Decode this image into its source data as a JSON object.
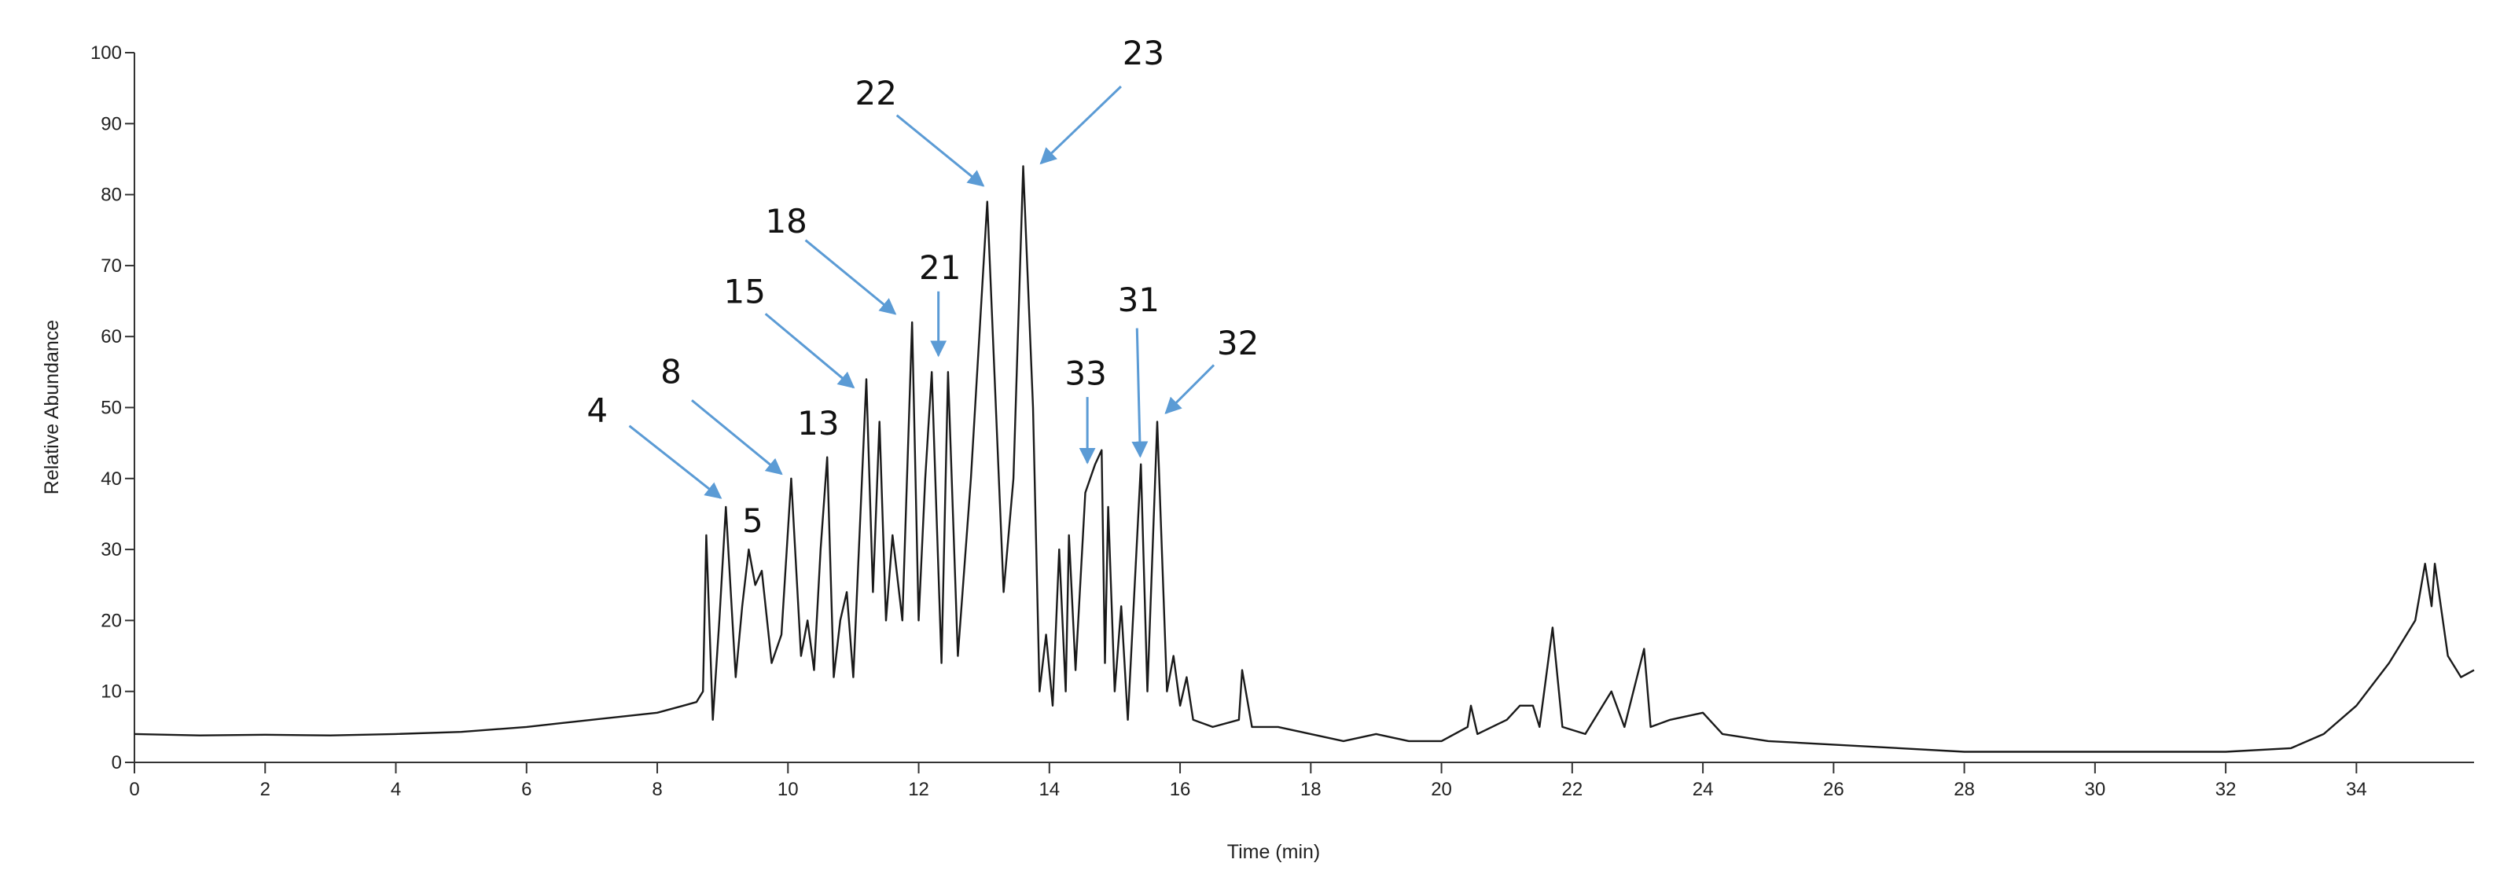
{
  "chart_data": {
    "type": "line",
    "xlabel": "Time  (min)",
    "ylabel": "Relative  Abundance",
    "xlim": [
      0,
      35.8
    ],
    "ylim": [
      0,
      100
    ],
    "xticks": [
      0,
      2,
      4,
      6,
      8,
      10,
      12,
      14,
      16,
      18,
      20,
      22,
      24,
      26,
      28,
      30,
      32,
      34
    ],
    "yticks": [
      0,
      10,
      20,
      30,
      40,
      50,
      60,
      70,
      80,
      90,
      100
    ],
    "color": "#1a1a1a",
    "annotation_color": "#5b9bd5",
    "annotations": [
      "4",
      "8",
      "5",
      "13",
      "15",
      "18",
      "21",
      "22",
      "23",
      "33",
      "31",
      "32"
    ],
    "x": [
      0,
      1,
      2,
      3,
      4,
      5,
      6,
      6.5,
      7,
      7.5,
      8,
      8.4,
      8.6,
      8.7,
      8.75,
      8.85,
      8.95,
      9.05,
      9.2,
      9.3,
      9.4,
      9.5,
      9.6,
      9.75,
      9.9,
      10.05,
      10.2,
      10.3,
      10.4,
      10.5,
      10.6,
      10.7,
      10.8,
      10.9,
      11.0,
      11.2,
      11.3,
      11.4,
      11.5,
      11.6,
      11.75,
      11.9,
      12.0,
      12.1,
      12.2,
      12.35,
      12.45,
      12.6,
      12.8,
      13.05,
      13.3,
      13.45,
      13.6,
      13.75,
      13.85,
      13.95,
      14.05,
      14.15,
      14.25,
      14.3,
      14.4,
      14.55,
      14.7,
      14.8,
      14.85,
      14.9,
      15.0,
      15.1,
      15.2,
      15.4,
      15.5,
      15.65,
      15.8,
      15.9,
      16.0,
      16.1,
      16.2,
      16.5,
      16.9,
      16.95,
      17.1,
      17.5,
      18,
      18.5,
      19,
      19.5,
      20,
      20.4,
      20.45,
      20.55,
      21,
      21.2,
      21.4,
      21.5,
      21.7,
      21.85,
      22.2,
      22.6,
      22.8,
      23.1,
      23.2,
      23.5,
      24,
      24.3,
      25,
      26,
      27,
      28,
      30,
      32,
      33,
      33.5,
      34,
      34.5,
      34.9,
      35.05,
      35.15,
      35.2,
      35.4,
      35.6,
      35.8
    ],
    "values": [
      4,
      3.8,
      3.9,
      3.8,
      4,
      4.3,
      5,
      5.5,
      6,
      6.5,
      7,
      8,
      8.5,
      10,
      32,
      6,
      20,
      36,
      12,
      22,
      30,
      25,
      27,
      14,
      18,
      40,
      15,
      20,
      13,
      30,
      43,
      12,
      20,
      24,
      12,
      54,
      24,
      48,
      20,
      32,
      20,
      62,
      20,
      40,
      55,
      14,
      55,
      15,
      40,
      79,
      24,
      40,
      84,
      50,
      10,
      18,
      8,
      30,
      10,
      32,
      13,
      38,
      42,
      44,
      14,
      36,
      10,
      22,
      6,
      42,
      10,
      48,
      10,
      15,
      8,
      12,
      6,
      5,
      6,
      13,
      5,
      5,
      4,
      3,
      4,
      3,
      3,
      5,
      8,
      4,
      6,
      8,
      8,
      5,
      19,
      5,
      4,
      10,
      5,
      16,
      5,
      6,
      7,
      4,
      3,
      2.5,
      2,
      1.5,
      1.5,
      1.5,
      2,
      4,
      8,
      14,
      20,
      28,
      22,
      28,
      15,
      12,
      13
    ]
  }
}
